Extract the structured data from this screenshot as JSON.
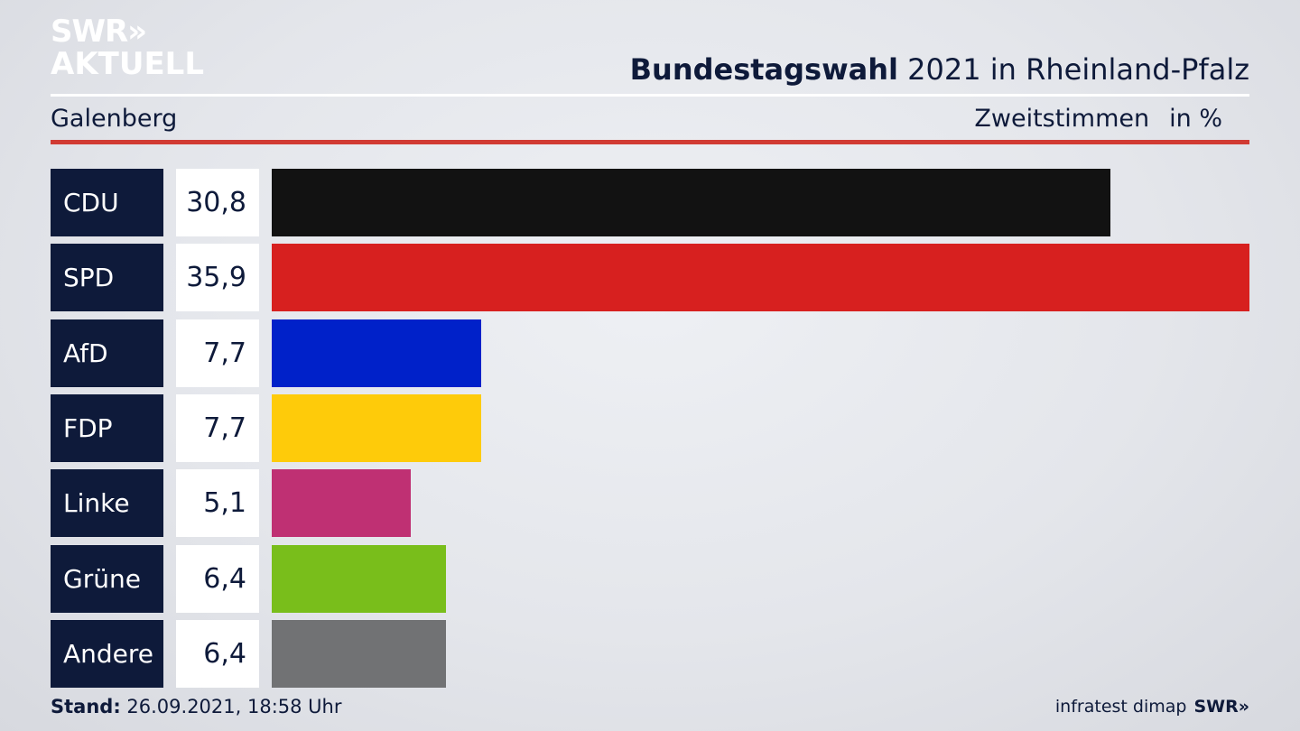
{
  "logo": {
    "line1": "SWR»",
    "line2": "AKTUELL"
  },
  "header": {
    "title_bold": "Bundestagswahl",
    "title_rest": " 2021 in Rheinland-Pfalz",
    "location": "Galenberg",
    "vote_type": "Zweitstimmen",
    "unit": "in %"
  },
  "footer": {
    "stand_label": "Stand:",
    "stand_value": " 26.09.2021, 18:58 Uhr",
    "source": "infratest dimap",
    "brand": "SWR»"
  },
  "colors": {
    "accent_red": "#d13b33",
    "label_bg": "#0e1a3a"
  },
  "chart_data": {
    "type": "bar",
    "orientation": "horizontal",
    "title": "Bundestagswahl 2021 in Rheinland-Pfalz",
    "subtitle": "Galenberg",
    "ylabel": "Zweitstimmen in %",
    "categories": [
      "CDU",
      "SPD",
      "AfD",
      "FDP",
      "Linke",
      "Grüne",
      "Andere"
    ],
    "values": [
      30.8,
      35.9,
      7.7,
      7.7,
      5.1,
      6.4,
      6.4
    ],
    "value_labels": [
      "30,8",
      "35,9",
      "7,7",
      "7,7",
      "5,1",
      "6,4",
      "6,4"
    ],
    "colors": [
      "#121212",
      "#d7201f",
      "#0021c9",
      "#fecb0a",
      "#bf3073",
      "#79be1b",
      "#717274"
    ],
    "xlim": [
      0,
      35.9
    ],
    "grid": false,
    "legend": "none"
  }
}
